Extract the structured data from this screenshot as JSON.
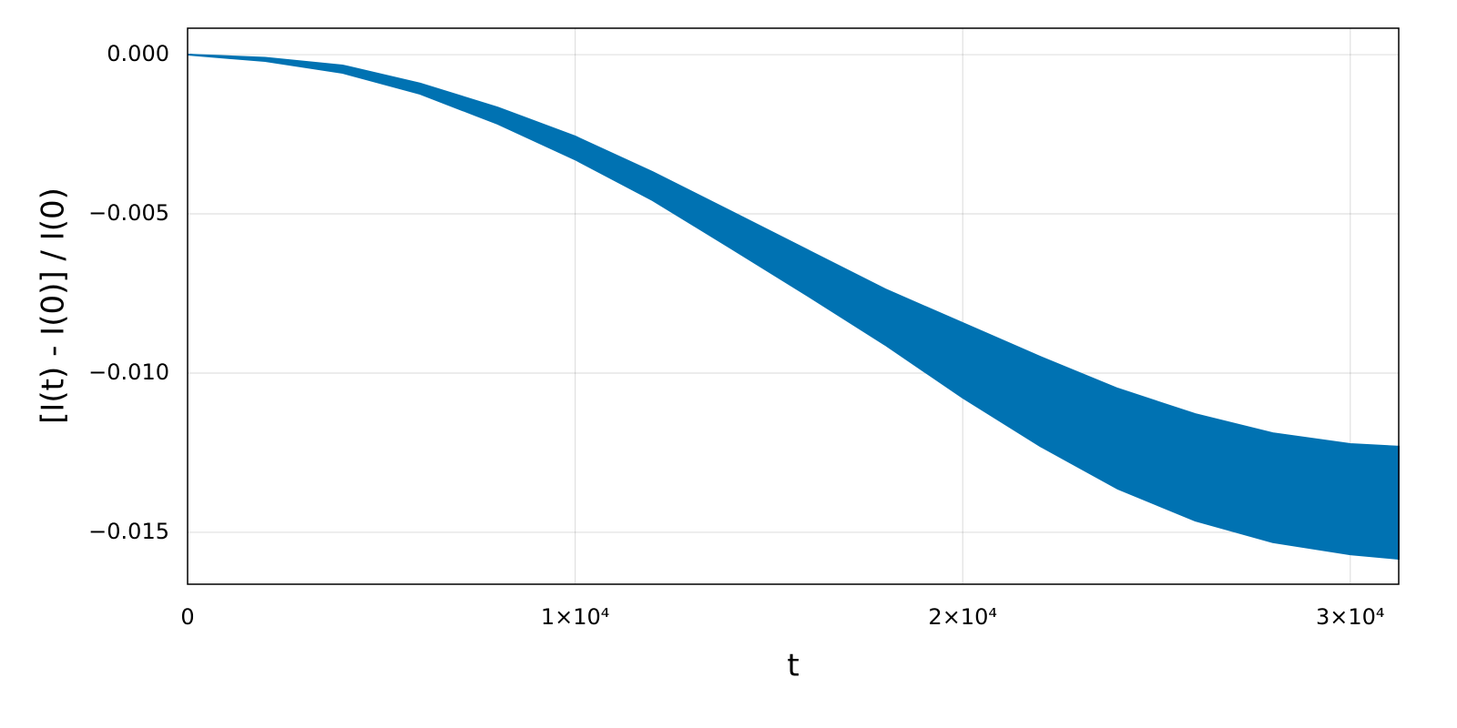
{
  "chart_data": {
    "type": "band",
    "xlabel": "t",
    "ylabel": "[I(t) - I(0)] / I(0)",
    "color": "#0072b2",
    "grid": true,
    "x": [
      0,
      2000,
      4000,
      6000,
      8000,
      10000,
      12000,
      14000,
      16000,
      18000,
      20000,
      22000,
      24000,
      26000,
      28000,
      30000,
      31250
    ],
    "upper": [
      0,
      -0.0001,
      -0.00034,
      -0.00091,
      -0.00166,
      -0.00257,
      -0.00369,
      -0.00491,
      -0.00614,
      -0.00737,
      -0.00843,
      -0.00949,
      -0.01049,
      -0.01129,
      -0.01189,
      -0.01223,
      -0.01231
    ],
    "lower": [
      0,
      -0.0002,
      -0.00057,
      -0.00123,
      -0.00217,
      -0.00329,
      -0.00457,
      -0.00606,
      -0.00757,
      -0.00911,
      -0.01077,
      -0.01229,
      -0.01363,
      -0.01463,
      -0.01531,
      -0.01569,
      -0.01583
    ],
    "xlim": [
      0,
      31250
    ],
    "ylim": [
      -0.01663,
      0.00083
    ],
    "xticks": [
      0,
      {
        "value": 10000,
        "label": "1×10⁴"
      },
      {
        "value": 20000,
        "label": "2×10⁴"
      },
      {
        "value": 30000,
        "label": "3×10⁴"
      }
    ],
    "yticks": [
      {
        "value": 0,
        "label": "0.000"
      },
      {
        "value": -0.005,
        "label": "−0.005"
      },
      {
        "value": -0.01,
        "label": "−0.010"
      },
      {
        "value": -0.015,
        "label": "−0.015"
      }
    ]
  }
}
